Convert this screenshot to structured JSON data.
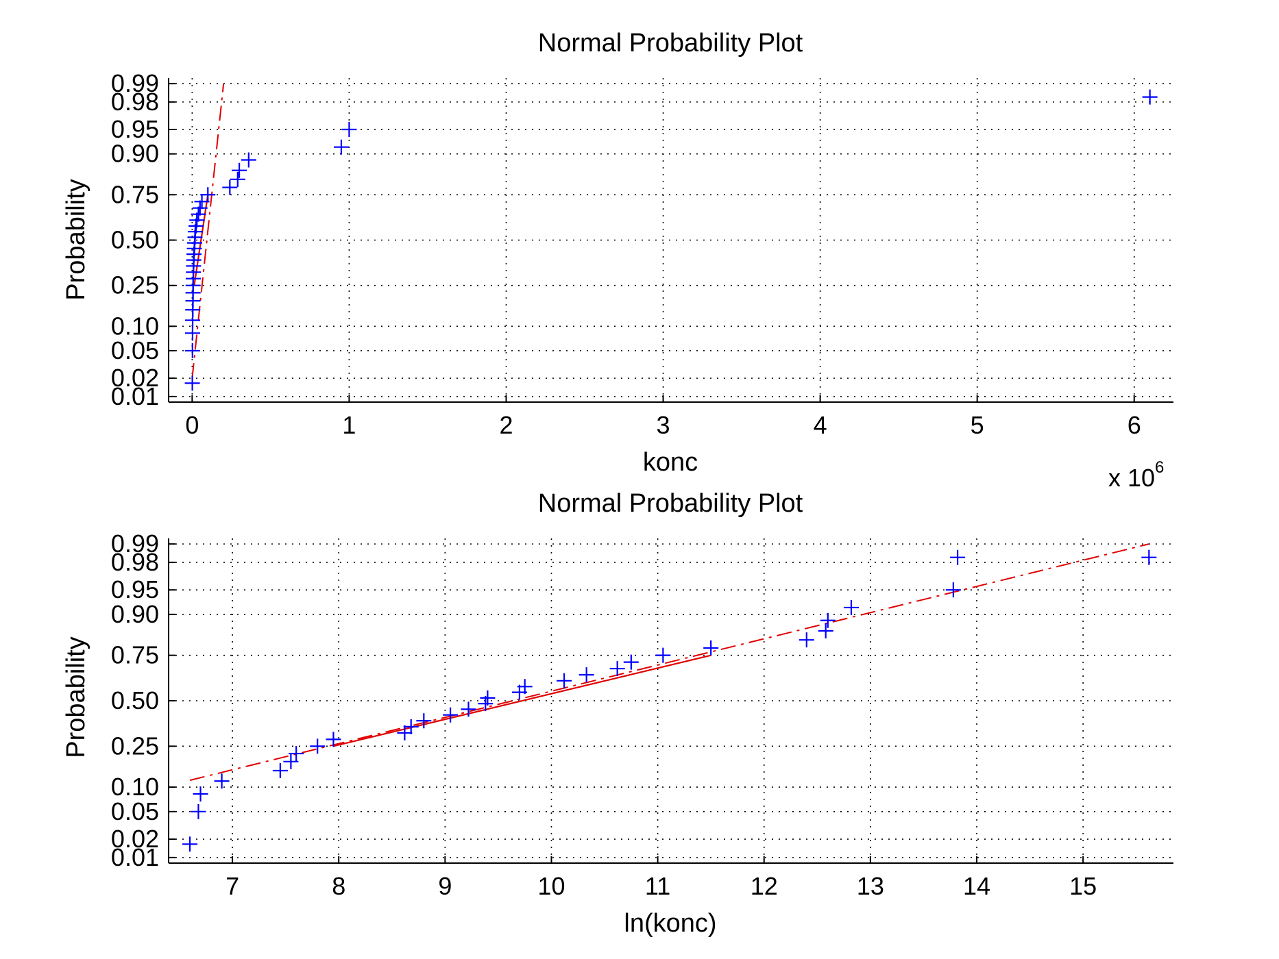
{
  "figure": {
    "colors": {
      "marker": "#0000ff",
      "fit_line": "#e00000",
      "grid": "#000000",
      "axes": "#000000"
    }
  },
  "chart_data": [
    {
      "type": "scatter",
      "title": "Normal Probability Plot",
      "xlabel": "konc",
      "ylabel": "Probability",
      "x_multiplier_label": "x 10",
      "x_multiplier_exponent": "6",
      "xlim": [
        -150000,
        6250000
      ],
      "xticks": [
        0,
        1000000,
        2000000,
        3000000,
        4000000,
        5000000,
        6000000
      ],
      "xtick_labels": [
        "0",
        "1",
        "2",
        "3",
        "4",
        "5",
        "6"
      ],
      "yscale": "normal-probability",
      "ylim": [
        0.008,
        0.992
      ],
      "yticks": [
        0.01,
        0.02,
        0.05,
        0.1,
        0.25,
        0.5,
        0.75,
        0.9,
        0.95,
        0.98,
        0.99
      ],
      "ytick_labels": [
        "0.01",
        "0.02",
        "0.05",
        "0.10",
        "0.25",
        "0.50",
        "0.75",
        "0.90",
        "0.95",
        "0.98",
        "0.99"
      ],
      "grid": true,
      "series": [
        {
          "marker": "+",
          "color": "#0000ff",
          "points": [
            [
              1000,
              0.0167
            ],
            [
              2000,
              0.05
            ],
            [
              2500,
              0.0833
            ],
            [
              3000,
              0.1167
            ],
            [
              4000,
              0.15
            ],
            [
              5000,
              0.1833
            ],
            [
              5500,
              0.2167
            ],
            [
              6000,
              0.25
            ],
            [
              7000,
              0.2833
            ],
            [
              8000,
              0.3167
            ],
            [
              9000,
              0.35
            ],
            [
              10000,
              0.3833
            ],
            [
              12000,
              0.4167
            ],
            [
              14000,
              0.45
            ],
            [
              16000,
              0.4833
            ],
            [
              18000,
              0.5167
            ],
            [
              20000,
              0.55
            ],
            [
              25000,
              0.5833
            ],
            [
              30000,
              0.6167
            ],
            [
              40000,
              0.65
            ],
            [
              50000,
              0.6833
            ],
            [
              62000,
              0.7167
            ],
            [
              100000,
              0.75
            ],
            [
              240000,
              0.7833
            ],
            [
              290000,
              0.8167
            ],
            [
              300000,
              0.85
            ],
            [
              360000,
              0.8833
            ],
            [
              950000,
              0.9167
            ],
            [
              1000000,
              0.95
            ],
            [
              6100000,
              0.9833
            ]
          ]
        }
      ],
      "fit_line": {
        "color": "#e00000",
        "solid": [
          [
            13000,
            0.25
          ],
          [
            100000,
            0.75
          ]
        ],
        "dashed": [
          [
            0,
            0.02
          ],
          [
            200000,
            0.99
          ]
        ]
      }
    },
    {
      "type": "scatter",
      "title": "Normal Probability Plot",
      "xlabel": "ln(konc)",
      "ylabel": "Probability",
      "xlim": [
        6.4,
        15.85
      ],
      "xticks": [
        7,
        8,
        9,
        10,
        11,
        12,
        13,
        14,
        15
      ],
      "xtick_labels": [
        "7",
        "8",
        "9",
        "10",
        "11",
        "12",
        "13",
        "14",
        "15"
      ],
      "yscale": "normal-probability",
      "ylim": [
        0.008,
        0.992
      ],
      "yticks": [
        0.01,
        0.02,
        0.05,
        0.1,
        0.25,
        0.5,
        0.75,
        0.9,
        0.95,
        0.98,
        0.99
      ],
      "ytick_labels": [
        "0.01",
        "0.02",
        "0.05",
        "0.10",
        "0.25",
        "0.50",
        "0.75",
        "0.90",
        "0.95",
        "0.98",
        "0.99"
      ],
      "grid": true,
      "series": [
        {
          "marker": "+",
          "color": "#0000ff",
          "points": [
            [
              6.6,
              0.0167
            ],
            [
              6.68,
              0.05
            ],
            [
              6.7,
              0.0833
            ],
            [
              6.9,
              0.1167
            ],
            [
              7.45,
              0.15
            ],
            [
              7.55,
              0.1833
            ],
            [
              7.6,
              0.2167
            ],
            [
              7.8,
              0.25
            ],
            [
              7.95,
              0.2833
            ],
            [
              8.62,
              0.3167
            ],
            [
              8.68,
              0.35
            ],
            [
              8.8,
              0.3833
            ],
            [
              9.05,
              0.4167
            ],
            [
              9.22,
              0.45
            ],
            [
              9.38,
              0.4833
            ],
            [
              9.4,
              0.5167
            ],
            [
              9.7,
              0.55
            ],
            [
              9.75,
              0.5833
            ],
            [
              10.12,
              0.6167
            ],
            [
              10.33,
              0.65
            ],
            [
              10.62,
              0.6833
            ],
            [
              10.75,
              0.7167
            ],
            [
              11.05,
              0.75
            ],
            [
              11.5,
              0.7833
            ],
            [
              12.4,
              0.8167
            ],
            [
              12.58,
              0.85
            ],
            [
              12.6,
              0.8833
            ],
            [
              12.82,
              0.9167
            ],
            [
              13.78,
              0.95
            ],
            [
              13.82,
              0.9833
            ],
            [
              15.62,
              0.9833
            ]
          ]
        }
      ],
      "fit_line": {
        "color": "#e00000",
        "solid": [
          [
            7.95,
            0.25
          ],
          [
            11.5,
            0.75
          ]
        ],
        "dashed": [
          [
            6.6,
            0.119
          ],
          [
            15.62,
            0.99
          ]
        ]
      }
    }
  ]
}
